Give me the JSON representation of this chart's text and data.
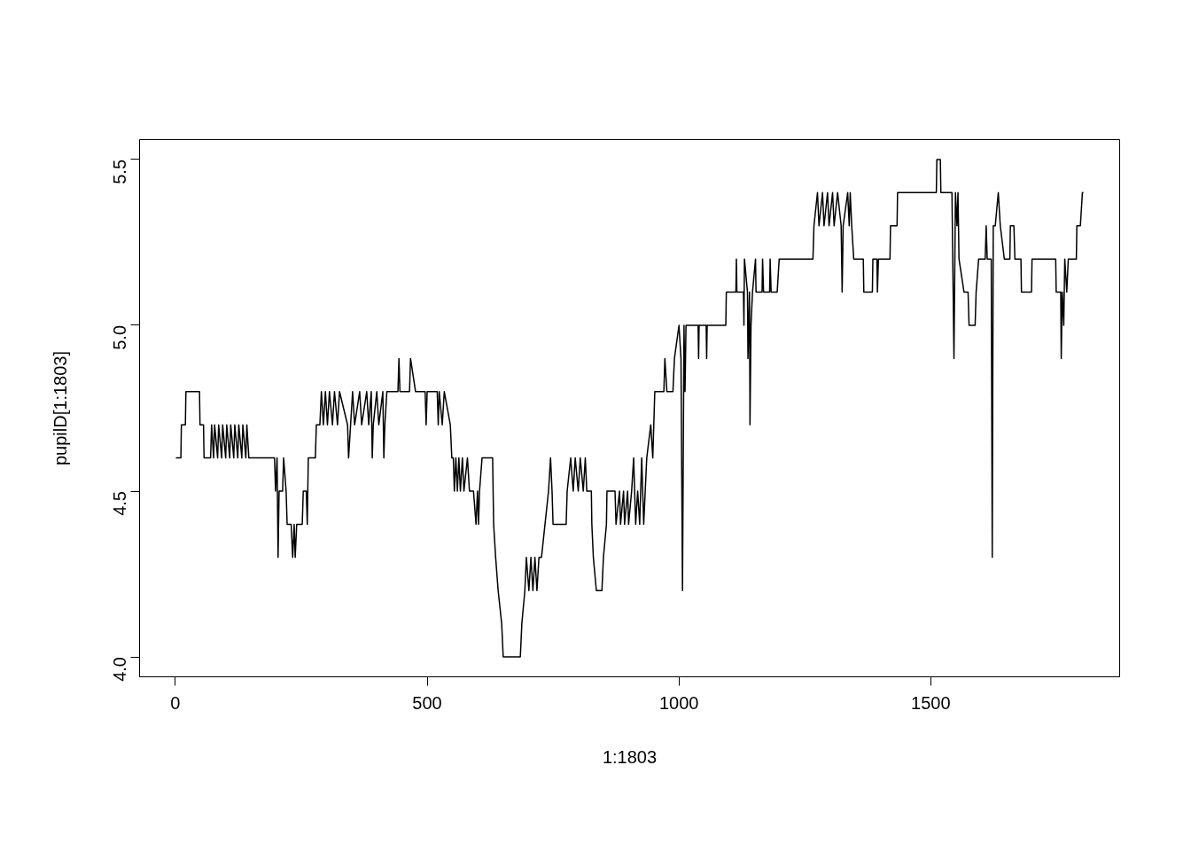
{
  "chart_data": {
    "type": "line",
    "xlabel": "1:1803",
    "ylabel": "pupilD[1:1803]",
    "x": [
      1,
      11,
      12,
      20,
      21,
      48,
      49,
      56,
      57,
      70,
      72,
      76,
      78,
      84,
      86,
      92,
      94,
      100,
      102,
      108,
      110,
      116,
      118,
      124,
      126,
      132,
      134,
      140,
      142,
      146,
      197,
      199,
      202,
      204,
      206,
      213,
      215,
      220,
      222,
      230,
      233,
      236,
      238,
      241,
      252,
      254,
      260,
      262,
      264,
      278,
      280,
      287,
      290,
      294,
      298,
      302,
      306,
      312,
      316,
      322,
      326,
      342,
      344,
      348,
      352,
      356,
      366,
      370,
      380,
      384,
      389,
      391,
      393,
      400,
      404,
      412,
      414,
      416,
      420,
      424,
      442,
      444,
      446,
      465,
      467,
      477,
      496,
      498,
      500,
      520,
      522,
      524,
      530,
      534,
      546,
      549,
      552,
      554,
      557,
      560,
      563,
      566,
      570,
      573,
      580,
      584,
      592,
      597,
      600,
      602,
      604,
      609,
      630,
      632,
      636,
      641,
      648,
      651,
      685,
      688,
      694,
      697,
      702,
      706,
      710,
      714,
      718,
      722,
      727,
      734,
      741,
      745,
      748,
      750,
      776,
      778,
      785,
      790,
      794,
      800,
      804,
      810,
      814,
      817,
      826,
      827,
      830,
      836,
      847,
      850,
      856,
      857,
      873,
      875,
      882,
      884,
      890,
      892,
      898,
      900,
      906,
      910,
      914,
      918,
      922,
      926,
      930,
      933,
      936,
      944,
      948,
      952,
      970,
      972,
      976,
      988,
      991,
      1000,
      1004,
      1007,
      1010,
      1012,
      1014,
      1018,
      1038,
      1039,
      1040,
      1054,
      1055,
      1056,
      1093,
      1094,
      1113,
      1114,
      1115,
      1128,
      1129,
      1130,
      1136,
      1137,
      1140,
      1141,
      1143,
      1146,
      1152,
      1153,
      1165,
      1166,
      1168,
      1180,
      1181,
      1183,
      1195,
      1199,
      1266,
      1268,
      1275,
      1278,
      1285,
      1288,
      1295,
      1298,
      1305,
      1308,
      1315,
      1322,
      1324,
      1326,
      1335,
      1338,
      1340,
      1343,
      1347,
      1366,
      1367,
      1384,
      1385,
      1393,
      1394,
      1396,
      1419,
      1420,
      1433,
      1434,
      1511,
      1512,
      1519,
      1520,
      1542,
      1546,
      1549,
      1552,
      1554,
      1556,
      1566,
      1574,
      1576,
      1588,
      1590,
      1595,
      1608,
      1610,
      1612,
      1620,
      1622,
      1624,
      1628,
      1634,
      1638,
      1646,
      1657,
      1658,
      1665,
      1667,
      1679,
      1680,
      1700,
      1701,
      1748,
      1749,
      1758,
      1759,
      1761,
      1764,
      1766,
      1770,
      1773,
      1789,
      1790,
      1797,
      1801,
      1803
    ],
    "series": [
      {
        "color": "#000000",
        "values": [
          4.6,
          4.6,
          4.7,
          4.7,
          4.8,
          4.8,
          4.7,
          4.7,
          4.6,
          4.6,
          4.7,
          4.6,
          4.7,
          4.6,
          4.7,
          4.6,
          4.7,
          4.6,
          4.7,
          4.6,
          4.7,
          4.6,
          4.7,
          4.6,
          4.7,
          4.6,
          4.7,
          4.6,
          4.7,
          4.6,
          4.6,
          4.5,
          4.6,
          4.3,
          4.5,
          4.5,
          4.6,
          4.5,
          4.4,
          4.4,
          4.3,
          4.4,
          4.3,
          4.4,
          4.4,
          4.5,
          4.5,
          4.4,
          4.6,
          4.6,
          4.7,
          4.7,
          4.8,
          4.7,
          4.8,
          4.7,
          4.8,
          4.7,
          4.8,
          4.7,
          4.8,
          4.7,
          4.6,
          4.7,
          4.8,
          4.7,
          4.8,
          4.7,
          4.8,
          4.7,
          4.8,
          4.6,
          4.7,
          4.8,
          4.7,
          4.8,
          4.6,
          4.7,
          4.8,
          4.8,
          4.8,
          4.9,
          4.8,
          4.8,
          4.9,
          4.8,
          4.8,
          4.7,
          4.8,
          4.8,
          4.7,
          4.8,
          4.7,
          4.8,
          4.7,
          4.6,
          4.6,
          4.5,
          4.6,
          4.5,
          4.6,
          4.5,
          4.6,
          4.5,
          4.6,
          4.5,
          4.5,
          4.4,
          4.5,
          4.4,
          4.5,
          4.6,
          4.6,
          4.4,
          4.3,
          4.2,
          4.1,
          4.0,
          4.0,
          4.1,
          4.2,
          4.3,
          4.2,
          4.3,
          4.2,
          4.3,
          4.2,
          4.3,
          4.3,
          4.4,
          4.5,
          4.6,
          4.5,
          4.4,
          4.4,
          4.5,
          4.6,
          4.5,
          4.6,
          4.5,
          4.6,
          4.5,
          4.6,
          4.5,
          4.5,
          4.4,
          4.3,
          4.2,
          4.2,
          4.3,
          4.4,
          4.5,
          4.5,
          4.4,
          4.5,
          4.4,
          4.5,
          4.4,
          4.5,
          4.4,
          4.5,
          4.6,
          4.4,
          4.5,
          4.4,
          4.6,
          4.4,
          4.5,
          4.6,
          4.7,
          4.6,
          4.8,
          4.8,
          4.9,
          4.8,
          4.8,
          4.9,
          5.0,
          4.9,
          4.2,
          5.0,
          4.8,
          5.0,
          5.0,
          5.0,
          4.9,
          5.0,
          5.0,
          4.9,
          5.0,
          5.0,
          5.1,
          5.1,
          5.2,
          5.1,
          5.1,
          5.0,
          5.2,
          5.1,
          4.9,
          5.1,
          4.7,
          5.0,
          5.1,
          5.2,
          5.1,
          5.1,
          5.2,
          5.1,
          5.1,
          5.2,
          5.1,
          5.1,
          5.2,
          5.2,
          5.3,
          5.4,
          5.3,
          5.4,
          5.3,
          5.4,
          5.3,
          5.4,
          5.3,
          5.4,
          5.3,
          5.1,
          5.3,
          5.4,
          5.3,
          5.4,
          5.3,
          5.2,
          5.2,
          5.1,
          5.1,
          5.2,
          5.2,
          5.1,
          5.2,
          5.2,
          5.3,
          5.3,
          5.4,
          5.4,
          5.5,
          5.5,
          5.4,
          5.4,
          4.9,
          5.4,
          5.3,
          5.4,
          5.2,
          5.1,
          5.1,
          5.0,
          5.0,
          5.1,
          5.2,
          5.2,
          5.3,
          5.2,
          5.2,
          4.3,
          5.3,
          5.3,
          5.4,
          5.3,
          5.2,
          5.2,
          5.3,
          5.3,
          5.2,
          5.2,
          5.1,
          5.1,
          5.2,
          5.2,
          5.1,
          5.1,
          4.9,
          5.1,
          5.0,
          5.2,
          5.1,
          5.2,
          5.2,
          5.3,
          5.3,
          5.4,
          5.4
        ]
      }
    ],
    "xlim": [
      -71,
      1875
    ],
    "ylim": [
      3.94,
      5.56
    ],
    "xticks": [
      0,
      500,
      1000,
      1500
    ],
    "yticks": [
      {
        "value": 4,
        "label": "4.0"
      },
      {
        "value": 4.5,
        "label": "4.5"
      },
      {
        "value": 5,
        "label": "5.0"
      },
      {
        "value": 5.5,
        "label": "5.5"
      }
    ],
    "grid": false,
    "line_style": "solid",
    "marker": "none"
  }
}
